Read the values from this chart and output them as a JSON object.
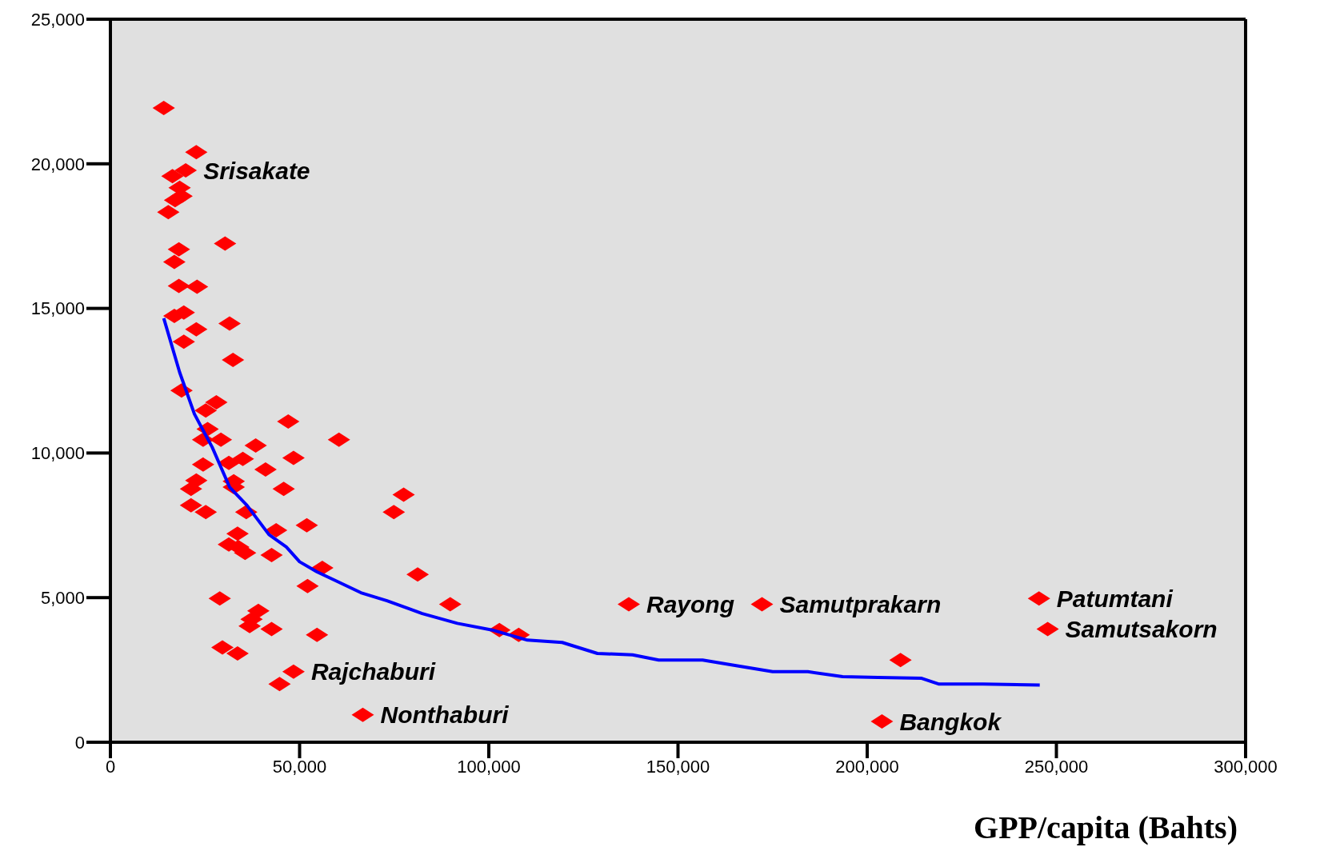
{
  "chart_data": {
    "type": "scatter",
    "xlabel": "GPP/capita (Bahts)",
    "xlim": [
      0,
      300000
    ],
    "xticks": [
      0,
      {
        "value": 50000,
        "label": "50,000"
      },
      {
        "value": 100000,
        "label": "100,000"
      },
      {
        "value": 150000,
        "label": "150,000"
      },
      {
        "value": 200000,
        "label": "200,000"
      },
      {
        "value": 250000,
        "label": "250,000"
      },
      {
        "value": 300000,
        "label": "300,000"
      }
    ],
    "ylim": [
      0,
      25000
    ],
    "yticks": [
      0,
      {
        "value": 5000,
        "label": "5,000"
      },
      {
        "value": 10000,
        "label": "10,000"
      },
      {
        "value": 15000,
        "label": "15,000"
      },
      {
        "value": 20000,
        "label": "20,000"
      },
      {
        "value": 25000,
        "label": "25,000"
      }
    ],
    "grid": false,
    "legend": false,
    "series": [
      {
        "color": "#ff0000",
        "marker": "diamond",
        "x": [
          14100,
          22700,
          19900,
          16400,
          18300,
          18800,
          17100,
          15300,
          30300,
          18100,
          16900,
          18100,
          22900,
          19400,
          16900,
          31500,
          22700,
          19400,
          32400,
          18800,
          28000,
          25200,
          47000,
          25700,
          60400,
          29200,
          24500,
          38400,
          24500,
          31300,
          35000,
          48400,
          41000,
          22700,
          21300,
          32600,
          32600,
          45800,
          77500,
          21300,
          25200,
          74900,
          35900,
          43800,
          51900,
          33600,
          31300,
          33800,
          35600,
          42600,
          56000,
          81200,
          52100,
          89800,
          28900,
          39100,
          37300,
          36800,
          42600,
          54600,
          102800,
          107900,
          29600,
          33600,
          48400,
          44700,
          66700,
          137000,
          172200,
          208800,
          203900,
          245400,
          247700
        ],
        "values": [
          21930,
          20400,
          19770,
          19570,
          19170,
          18880,
          18740,
          18330,
          17240,
          17040,
          16610,
          15780,
          15750,
          14860,
          14740,
          14480,
          14280,
          13850,
          13220,
          12160,
          11750,
          11470,
          11090,
          10830,
          10460,
          10460,
          10460,
          10260,
          9600,
          9660,
          9800,
          9830,
          9430,
          9050,
          8760,
          9020,
          8820,
          8760,
          8560,
          8190,
          7960,
          7960,
          7960,
          7330,
          7500,
          7210,
          6840,
          6750,
          6550,
          6470,
          6030,
          5800,
          5400,
          4770,
          4970,
          4540,
          4250,
          4020,
          3910,
          3710,
          3880,
          3710,
          3280,
          3070,
          2440,
          2010,
          950,
          4770,
          4770,
          2840,
          720,
          4970,
          3910
        ]
      },
      {
        "type": "line",
        "color": "#0000ff",
        "marker": "none",
        "line_style": "solid",
        "x": [
          14100,
          18300,
          22200,
          26900,
          31500,
          36100,
          41900,
          46500,
          50000,
          54600,
          59300,
          66200,
          73100,
          82400,
          91700,
          100900,
          110200,
          119400,
          128700,
          138000,
          144900,
          156500,
          165700,
          175000,
          184300,
          193500,
          202800,
          214400,
          219000,
          230600,
          245600
        ],
        "values": [
          14660,
          12790,
          11350,
          10200,
          8820,
          8190,
          7180,
          6750,
          6240,
          5890,
          5600,
          5170,
          4890,
          4450,
          4110,
          3880,
          3530,
          3450,
          3070,
          3020,
          2840,
          2840,
          2640,
          2440,
          2440,
          2270,
          2240,
          2210,
          2010,
          2010,
          1980
        ]
      }
    ],
    "annotations": [
      {
        "text": "Srisakate",
        "x": 19900,
        "y": 19770
      },
      {
        "text": "Rajchaburi",
        "x": 48400,
        "y": 2440
      },
      {
        "text": "Nonthaburi",
        "x": 66700,
        "y": 950
      },
      {
        "text": "Rayong",
        "x": 137000,
        "y": 4770
      },
      {
        "text": "Samutprakarn",
        "x": 172200,
        "y": 4770
      },
      {
        "text": "Patumtani",
        "x": 245400,
        "y": 4970
      },
      {
        "text": "Samutsakorn",
        "x": 247700,
        "y": 3910
      },
      {
        "text": "Bangkok",
        "x": 203900,
        "y": 720
      }
    ]
  }
}
